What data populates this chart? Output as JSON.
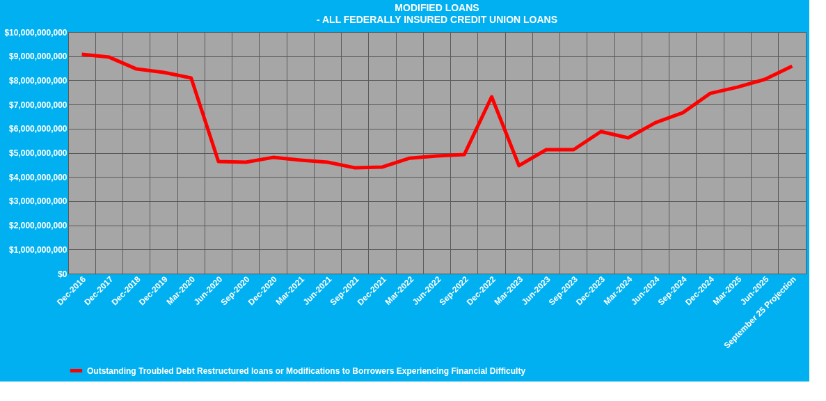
{
  "chart_data": {
    "type": "line",
    "title": "MODIFIED LOANS",
    "subtitle": "- ALL FEDERALLY INSURED CREDIT UNION LOANS",
    "categories": [
      "Dec-2016",
      "Dec-2017",
      "Dec-2018",
      "Dec-2019",
      "Mar-2020",
      "Jun-2020",
      "Sep-2020",
      "Dec-2020",
      "Mar-2021",
      "Jun-2021",
      "Sep-2021",
      "Dec-2021",
      "Mar-2022",
      "Jun-2022",
      "Sep-2022",
      "Dec-2022",
      "Mar-2023",
      "Jun-2023",
      "Sep-2023",
      "Dec-2023",
      "Mar-2024",
      "Jun-2024",
      "Sep-2024",
      "Dec-2024",
      "Mar-2025",
      "Jun-2025",
      "September 25 Projection"
    ],
    "series": [
      {
        "name": "Outstanding Troubled Debt Restructured loans or Modifications to Borrowers Experiencing Financial Difficulty",
        "color": "#ff0000",
        "values": [
          9080000000,
          8960000000,
          8470000000,
          8330000000,
          8100000000,
          4640000000,
          4610000000,
          4810000000,
          4700000000,
          4610000000,
          4380000000,
          4410000000,
          4780000000,
          4870000000,
          4930000000,
          7320000000,
          4470000000,
          5130000000,
          5130000000,
          5880000000,
          5620000000,
          6250000000,
          6660000000,
          7460000000,
          7720000000,
          8040000000,
          8590000000
        ]
      }
    ],
    "ylim": [
      0,
      10000000000
    ],
    "yticks": [
      {
        "value": 0,
        "label": "$0"
      },
      {
        "value": 1000000000,
        "label": "$1,000,000,000"
      },
      {
        "value": 2000000000,
        "label": "$2,000,000,000"
      },
      {
        "value": 3000000000,
        "label": "$3,000,000,000"
      },
      {
        "value": 4000000000,
        "label": "$4,000,000,000"
      },
      {
        "value": 5000000000,
        "label": "$5,000,000,000"
      },
      {
        "value": 6000000000,
        "label": "$6,000,000,000"
      },
      {
        "value": 7000000000,
        "label": "$7,000,000,000"
      },
      {
        "value": 8000000000,
        "label": "$8,000,000,000"
      },
      {
        "value": 9000000000,
        "label": "$9,000,000,000"
      },
      {
        "value": 10000000000,
        "label": "$10,000,000,000"
      }
    ],
    "grid": true,
    "legend": "bottom",
    "marker": "none",
    "line_style": "solid"
  }
}
